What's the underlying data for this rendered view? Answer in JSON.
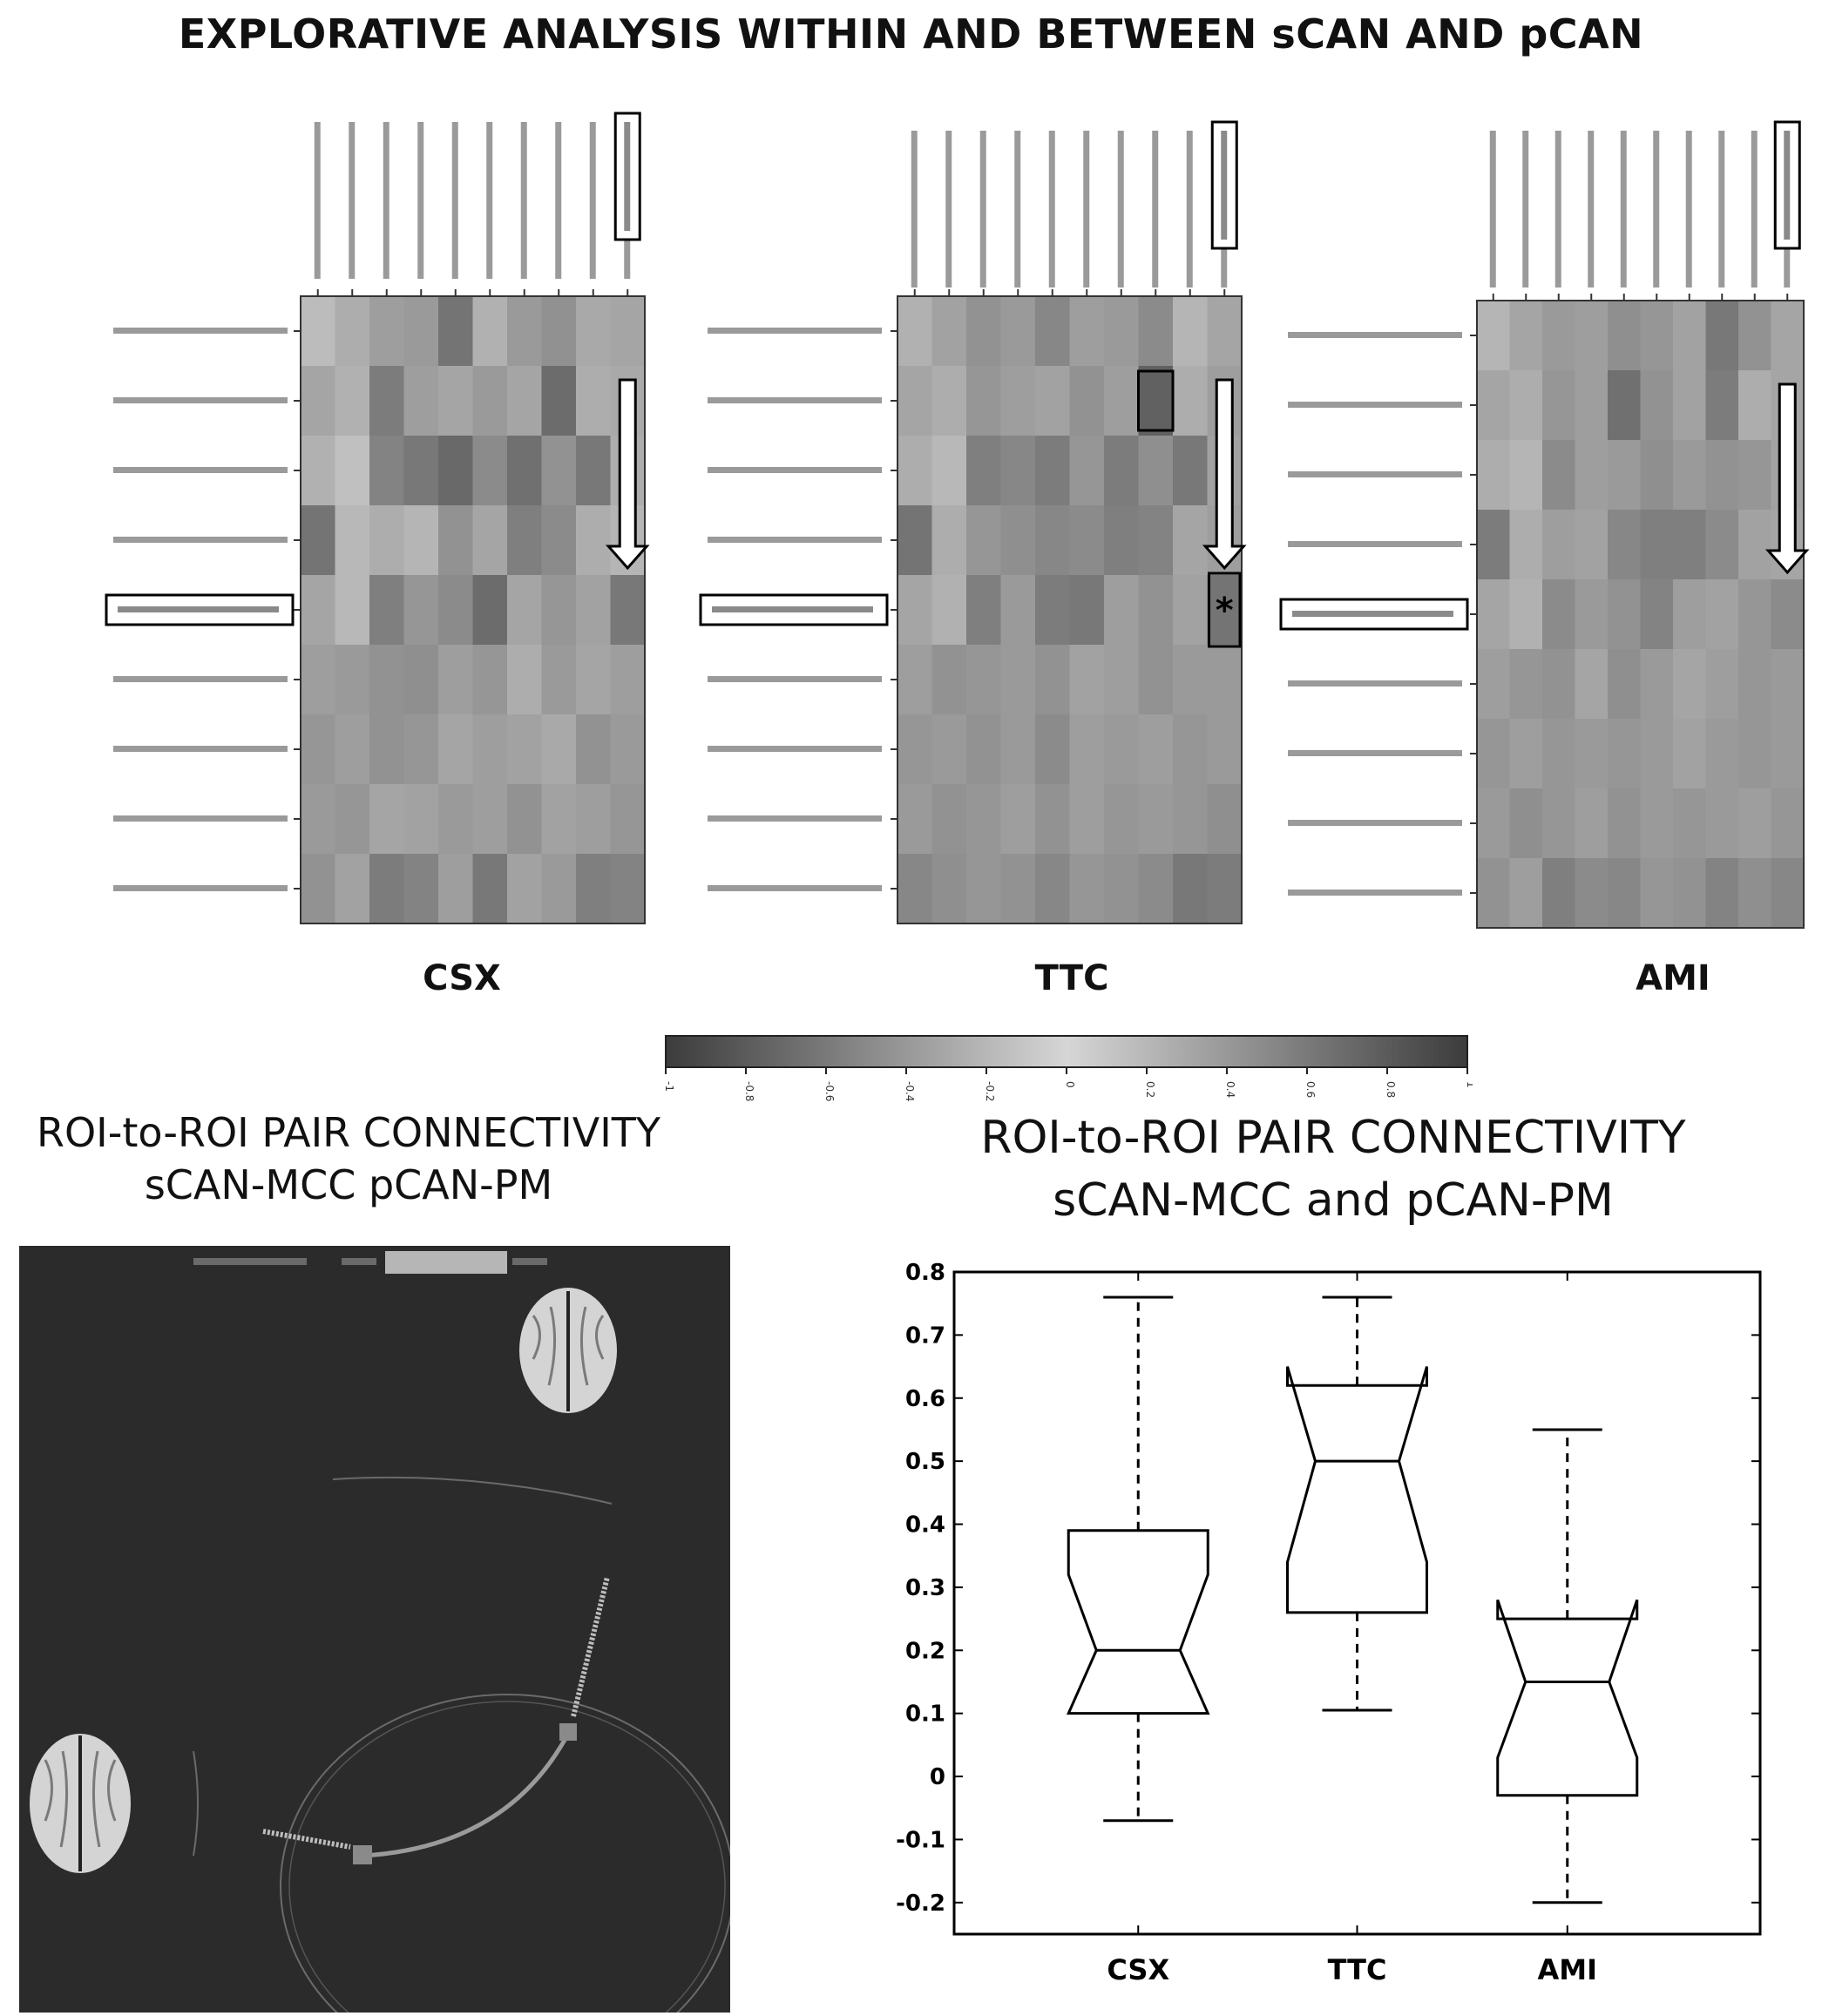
{
  "main_title": "EXPLORATIVE ANALYSIS WITHIN AND BETWEEN sCAN AND pCAN",
  "bottom_left_title": [
    "ROI-to-ROI PAIR CONNECTIVITY",
    "sCAN-MCC pCAN-PM"
  ],
  "bottom_right_title": [
    "ROI-to-ROI PAIR CONNECTIVITY",
    "sCAN-MCC and pCAN-PM"
  ],
  "colors": {
    "box_stroke": "#000000",
    "connectome_bg": "#2b2b2b",
    "heatmap_low": "#4a4a4a",
    "heatmap_high": "#d8d8d8"
  },
  "chart_data": [
    {
      "type": "heatmap",
      "panel": "CSX",
      "grid": [
        [
          0.78,
          0.7,
          0.62,
          0.6,
          0.4,
          0.72,
          0.6,
          0.55,
          0.68,
          0.66
        ],
        [
          0.66,
          0.72,
          0.44,
          0.62,
          0.66,
          0.6,
          0.66,
          0.36,
          0.7,
          0.68
        ],
        [
          0.72,
          0.8,
          0.48,
          0.42,
          0.34,
          0.52,
          0.38,
          0.56,
          0.42,
          0.7
        ],
        [
          0.4,
          0.76,
          0.7,
          0.74,
          0.56,
          0.66,
          0.46,
          0.52,
          0.7,
          0.74
        ],
        [
          0.66,
          0.76,
          0.46,
          0.58,
          0.52,
          0.36,
          0.66,
          0.58,
          0.64,
          0.42
        ],
        [
          0.62,
          0.6,
          0.56,
          0.54,
          0.62,
          0.58,
          0.7,
          0.6,
          0.66,
          0.62
        ],
        [
          0.58,
          0.62,
          0.56,
          0.58,
          0.66,
          0.62,
          0.64,
          0.68,
          0.56,
          0.6
        ],
        [
          0.6,
          0.58,
          0.66,
          0.64,
          0.6,
          0.62,
          0.56,
          0.64,
          0.62,
          0.58
        ],
        [
          0.56,
          0.64,
          0.44,
          0.48,
          0.62,
          0.42,
          0.64,
          0.6,
          0.46,
          0.48
        ]
      ]
    },
    {
      "type": "heatmap",
      "panel": "TTC",
      "grid": [
        [
          0.72,
          0.64,
          0.56,
          0.6,
          0.5,
          0.62,
          0.6,
          0.52,
          0.74,
          0.66
        ],
        [
          0.66,
          0.7,
          0.58,
          0.62,
          0.64,
          0.56,
          0.62,
          0.3,
          0.7,
          0.62
        ],
        [
          0.7,
          0.76,
          0.46,
          0.5,
          0.44,
          0.58,
          0.44,
          0.54,
          0.42,
          0.64
        ],
        [
          0.4,
          0.7,
          0.58,
          0.54,
          0.5,
          0.52,
          0.46,
          0.48,
          0.66,
          0.62
        ],
        [
          0.66,
          0.72,
          0.46,
          0.6,
          0.44,
          0.42,
          0.62,
          0.56,
          0.64,
          0.4
        ],
        [
          0.62,
          0.56,
          0.58,
          0.6,
          0.56,
          0.64,
          0.62,
          0.56,
          0.6,
          0.6
        ],
        [
          0.58,
          0.6,
          0.56,
          0.6,
          0.52,
          0.62,
          0.6,
          0.62,
          0.58,
          0.6
        ],
        [
          0.6,
          0.56,
          0.58,
          0.62,
          0.56,
          0.62,
          0.58,
          0.6,
          0.58,
          0.54
        ],
        [
          0.5,
          0.54,
          0.58,
          0.56,
          0.5,
          0.58,
          0.56,
          0.52,
          0.42,
          0.44
        ]
      ]
    },
    {
      "type": "heatmap",
      "panel": "AMI",
      "grid": [
        [
          0.74,
          0.66,
          0.6,
          0.62,
          0.54,
          0.58,
          0.64,
          0.42,
          0.56,
          0.66
        ],
        [
          0.66,
          0.7,
          0.58,
          0.62,
          0.38,
          0.56,
          0.64,
          0.44,
          0.7,
          0.66
        ],
        [
          0.7,
          0.74,
          0.52,
          0.62,
          0.6,
          0.54,
          0.6,
          0.56,
          0.58,
          0.64
        ],
        [
          0.44,
          0.7,
          0.62,
          0.64,
          0.5,
          0.46,
          0.46,
          0.52,
          0.64,
          0.66
        ],
        [
          0.66,
          0.72,
          0.52,
          0.6,
          0.56,
          0.48,
          0.62,
          0.64,
          0.58,
          0.52
        ],
        [
          0.62,
          0.58,
          0.56,
          0.66,
          0.54,
          0.6,
          0.66,
          0.62,
          0.58,
          0.6
        ],
        [
          0.58,
          0.62,
          0.58,
          0.6,
          0.58,
          0.6,
          0.64,
          0.6,
          0.58,
          0.6
        ],
        [
          0.6,
          0.54,
          0.58,
          0.62,
          0.56,
          0.6,
          0.58,
          0.6,
          0.62,
          0.58
        ],
        [
          0.56,
          0.62,
          0.46,
          0.52,
          0.5,
          0.58,
          0.56,
          0.48,
          0.54,
          0.5
        ]
      ]
    },
    {
      "type": "box",
      "categories": [
        "CSX",
        "TTC",
        "AMI"
      ],
      "ylim": [
        -0.25,
        0.8
      ],
      "yticks": [
        "-0.2",
        "-0.1",
        "0",
        "0.1",
        "0.2",
        "0.3",
        "0.4",
        "0.5",
        "0.6",
        "0.7",
        "0.8"
      ],
      "boxes": [
        {
          "whisker_low": -0.07,
          "q1": 0.1,
          "median": 0.2,
          "q3": 0.39,
          "whisker_high": 0.76,
          "notch_low": 0.1,
          "notch_high": 0.32
        },
        {
          "whisker_low": 0.105,
          "q1": 0.26,
          "median": 0.5,
          "q3": 0.62,
          "whisker_high": 0.76,
          "notch_low": 0.34,
          "notch_high": 0.65
        },
        {
          "whisker_low": -0.2,
          "q1": -0.03,
          "median": 0.15,
          "q3": 0.25,
          "whisker_high": 0.55,
          "notch_low": 0.03,
          "notch_high": 0.28
        }
      ]
    }
  ],
  "heatmaps": {
    "labels": [
      "CSX",
      "TTC",
      "AMI"
    ],
    "star": "*"
  },
  "colorbar": {
    "ticks": [
      "-1",
      "-0.8",
      "-0.6",
      "-0.4",
      "-0.2",
      "0",
      "0.2",
      "0.4",
      "0.6",
      "0.8",
      "1"
    ]
  }
}
